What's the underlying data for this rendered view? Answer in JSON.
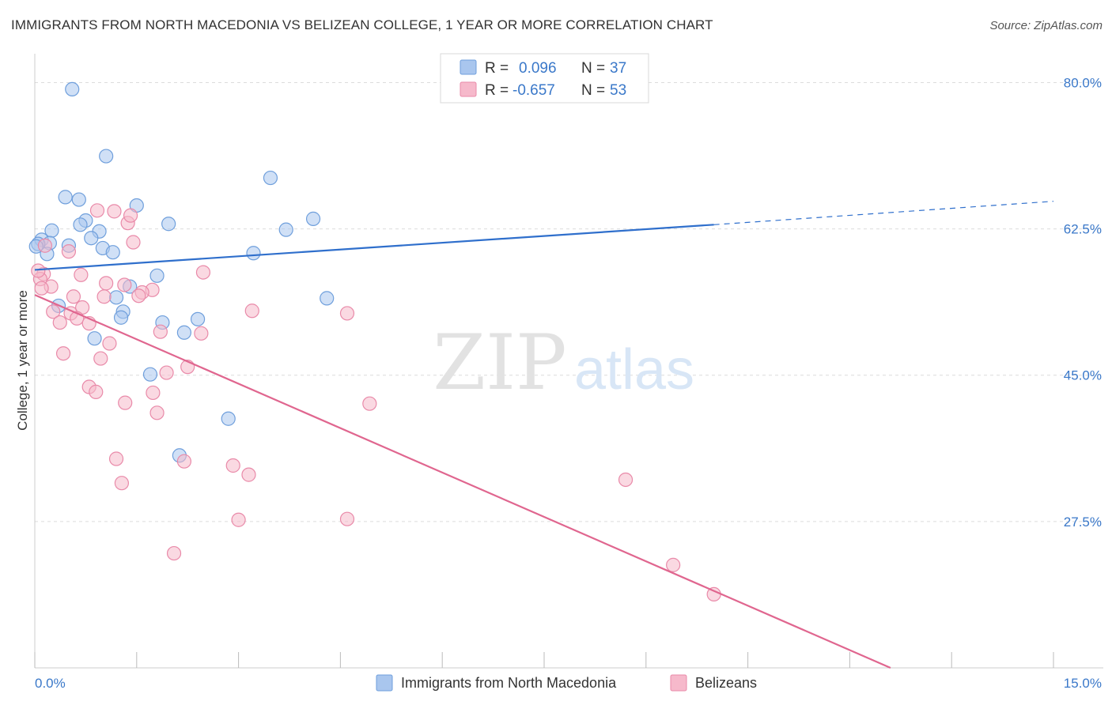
{
  "title": "IMMIGRANTS FROM NORTH MACEDONIA VS BELIZEAN COLLEGE, 1 YEAR OR MORE CORRELATION CHART",
  "source": "Source: ZipAtlas.com",
  "watermark": {
    "zip": "ZIP",
    "atlas": "atlas"
  },
  "legend_top": {
    "rows": [
      {
        "r_label": "R =",
        "r_value": "0.096",
        "n_label": "N =",
        "n_value": "37",
        "color": "#a9c6ee",
        "stroke": "#6f9fdc"
      },
      {
        "r_label": "R =",
        "r_value": "-0.657",
        "n_label": "N =",
        "n_value": "53",
        "color": "#f6b9cb",
        "stroke": "#e98aa9"
      }
    ]
  },
  "legend_bottom": [
    {
      "label": "Immigrants from North Macedonia",
      "color": "#a9c6ee",
      "stroke": "#6f9fdc"
    },
    {
      "label": "Belizeans",
      "color": "#f6b9cb",
      "stroke": "#e98aa9"
    }
  ],
  "chart_data": {
    "type": "scatter",
    "ylabel": "College, 1 year or more",
    "xlim": [
      0,
      15
    ],
    "ylim": [
      10,
      82.5
    ],
    "x_ticks": [
      "0.0%",
      "15.0%"
    ],
    "y_ticks": [
      {
        "value": 80,
        "label": "80.0%"
      },
      {
        "value": 62.5,
        "label": "62.5%"
      },
      {
        "value": 45,
        "label": "45.0%"
      },
      {
        "value": 27.5,
        "label": "27.5%"
      }
    ],
    "grid": true,
    "series": [
      {
        "name": "Immigrants from North Macedonia",
        "color": "#6f9fdc",
        "fill": "#a9c6ee",
        "trend": {
          "x0": 0,
          "y0": 57.6,
          "x1": 10.0,
          "y1": 63.0,
          "dashed_to_x": 15.0,
          "dashed_to_y": 65.8,
          "color": "#2f6fcc"
        },
        "points": [
          [
            0.55,
            79.2
          ],
          [
            1.05,
            71.2
          ],
          [
            0.45,
            66.3
          ],
          [
            0.65,
            66.0
          ],
          [
            1.5,
            65.3
          ],
          [
            3.47,
            68.6
          ],
          [
            0.75,
            63.5
          ],
          [
            0.25,
            62.3
          ],
          [
            0.67,
            63.0
          ],
          [
            0.95,
            62.2
          ],
          [
            1.97,
            63.1
          ],
          [
            3.7,
            62.4
          ],
          [
            4.1,
            63.7
          ],
          [
            0.1,
            61.2
          ],
          [
            0.22,
            60.8
          ],
          [
            0.5,
            60.5
          ],
          [
            0.83,
            61.4
          ],
          [
            1.0,
            60.2
          ],
          [
            1.15,
            59.7
          ],
          [
            3.22,
            59.6
          ],
          [
            0.18,
            59.5
          ],
          [
            0.05,
            60.7
          ],
          [
            1.8,
            56.9
          ],
          [
            1.4,
            55.6
          ],
          [
            1.2,
            54.3
          ],
          [
            4.3,
            54.2
          ],
          [
            0.35,
            53.3
          ],
          [
            1.3,
            52.6
          ],
          [
            1.27,
            51.9
          ],
          [
            2.4,
            51.7
          ],
          [
            1.88,
            51.3
          ],
          [
            2.2,
            50.1
          ],
          [
            0.88,
            49.4
          ],
          [
            1.7,
            45.1
          ],
          [
            2.85,
            39.8
          ],
          [
            2.13,
            35.4
          ],
          [
            0.02,
            60.4
          ]
        ]
      },
      {
        "name": "Belizeans",
        "color": "#e98aa9",
        "fill": "#f6b9cb",
        "trend": {
          "x0": 0,
          "y0": 54.6,
          "x1": 12.6,
          "y1": 10.0,
          "color": "#e0668f"
        },
        "points": [
          [
            0.15,
            60.5
          ],
          [
            0.5,
            59.8
          ],
          [
            1.17,
            64.6
          ],
          [
            0.92,
            64.7
          ],
          [
            1.37,
            63.2
          ],
          [
            1.41,
            64.1
          ],
          [
            1.45,
            60.9
          ],
          [
            0.13,
            57.1
          ],
          [
            0.68,
            57.0
          ],
          [
            2.48,
            57.3
          ],
          [
            1.05,
            56.0
          ],
          [
            1.32,
            55.8
          ],
          [
            0.08,
            56.5
          ],
          [
            0.24,
            55.6
          ],
          [
            0.1,
            55.4
          ],
          [
            1.73,
            55.2
          ],
          [
            1.58,
            54.9
          ],
          [
            1.53,
            54.5
          ],
          [
            0.57,
            54.4
          ],
          [
            1.02,
            54.4
          ],
          [
            0.27,
            52.6
          ],
          [
            0.53,
            52.4
          ],
          [
            0.7,
            53.1
          ],
          [
            3.2,
            52.7
          ],
          [
            4.6,
            52.4
          ],
          [
            0.62,
            51.8
          ],
          [
            0.37,
            51.3
          ],
          [
            0.8,
            51.2
          ],
          [
            1.85,
            50.2
          ],
          [
            2.45,
            50.0
          ],
          [
            1.1,
            48.8
          ],
          [
            0.42,
            47.6
          ],
          [
            0.97,
            47.0
          ],
          [
            2.25,
            46.0
          ],
          [
            1.94,
            45.3
          ],
          [
            0.8,
            43.6
          ],
          [
            0.9,
            43.0
          ],
          [
            1.74,
            42.9
          ],
          [
            1.33,
            41.7
          ],
          [
            4.93,
            41.6
          ],
          [
            1.8,
            40.5
          ],
          [
            1.2,
            35.0
          ],
          [
            2.2,
            34.7
          ],
          [
            2.92,
            34.2
          ],
          [
            3.15,
            33.1
          ],
          [
            8.7,
            32.5
          ],
          [
            1.28,
            32.1
          ],
          [
            3.0,
            27.7
          ],
          [
            4.6,
            27.8
          ],
          [
            2.05,
            23.7
          ],
          [
            9.4,
            22.3
          ],
          [
            10.0,
            18.8
          ],
          [
            0.05,
            57.5
          ]
        ]
      }
    ]
  }
}
